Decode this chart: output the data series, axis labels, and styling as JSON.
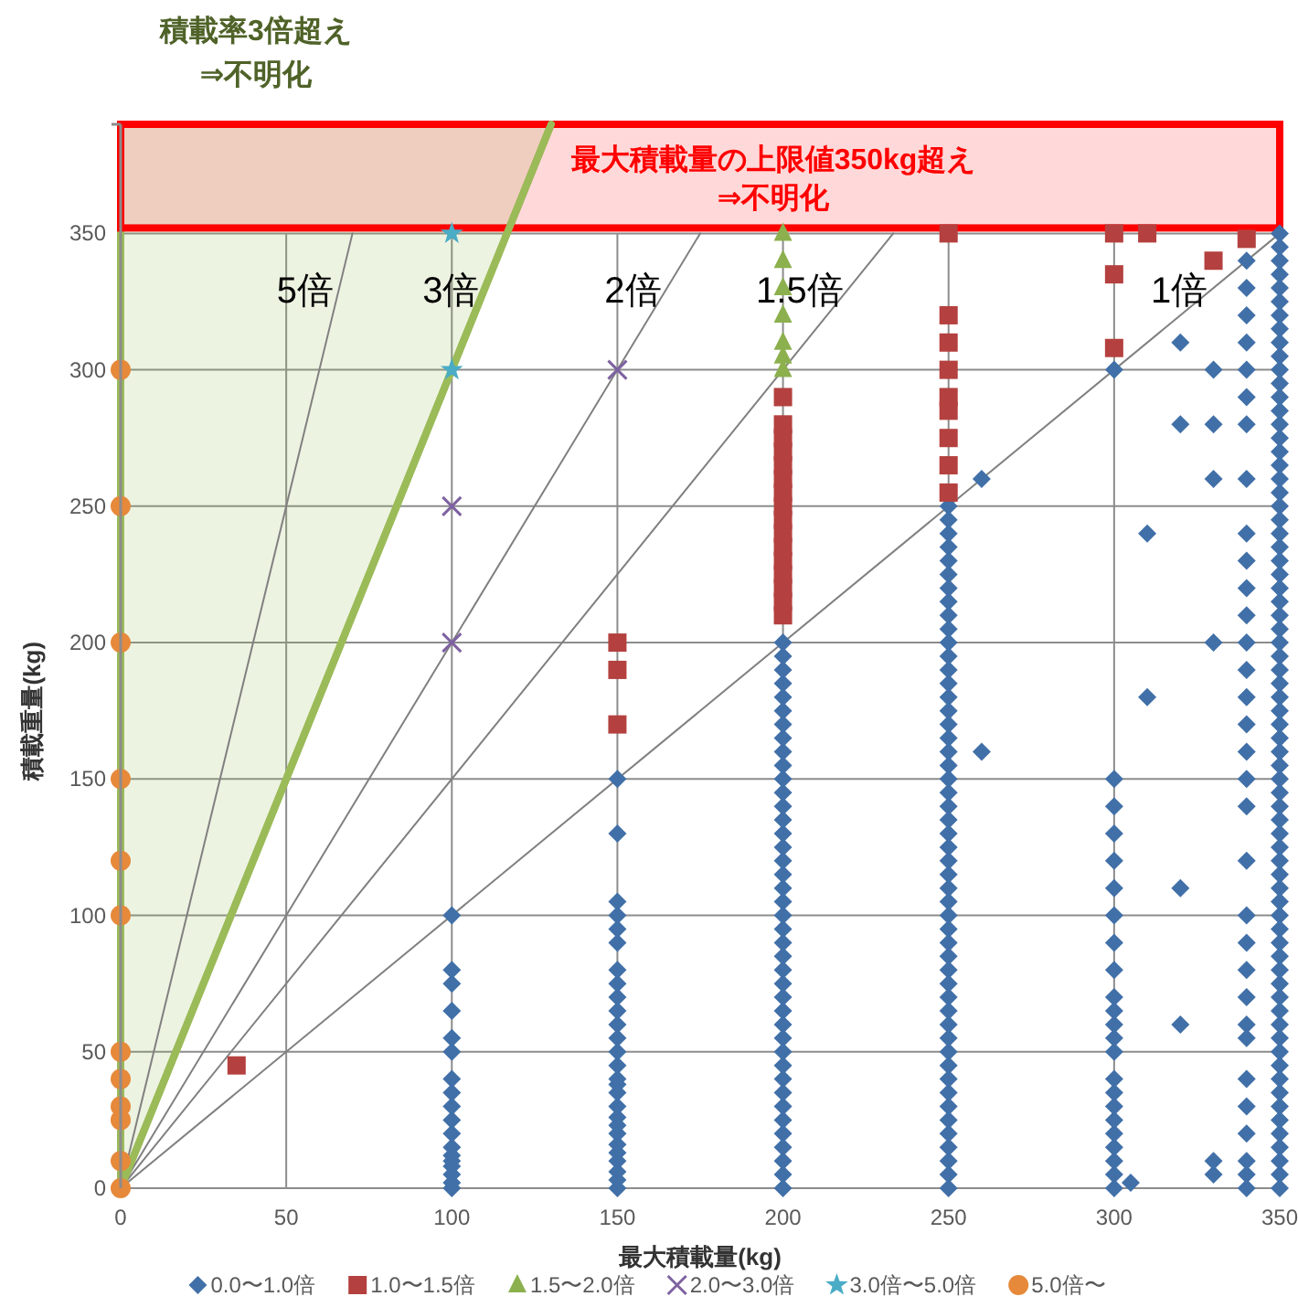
{
  "chart_data": {
    "type": "scatter",
    "xlabel": "最大積載量(kg)",
    "ylabel": "積載重量(kg)",
    "annotations": [
      "積載率3倍超え\n⇒不明化"
    ],
    "xlim": [
      0,
      350
    ],
    "ylim": [
      0,
      390
    ],
    "xticks": [
      0,
      50,
      100,
      150,
      200,
      250,
      300,
      350
    ],
    "yticks": [
      0,
      50,
      100,
      150,
      200,
      250,
      300,
      350
    ],
    "grid": true,
    "legend": "bottom",
    "bands": [
      {
        "axis": "y",
        "from": 352,
        "to": 390,
        "label": "最大積載量の上限値350kg超え\n⇒不明化",
        "color": "#ff0000"
      }
    ],
    "series": [
      {
        "type": "line",
        "name": "3倍",
        "color": "#9bbb59",
        "x": [
          0,
          130
        ],
        "values": [
          0,
          390
        ],
        "lower": [
          0,
          390
        ],
        "upper": [
          390,
          390
        ]
      },
      {
        "type": "line",
        "name": "5倍",
        "color": "#808080",
        "x": [
          0,
          70
        ],
        "values": [
          0,
          350
        ]
      },
      {
        "type": "line",
        "name": "2倍",
        "color": "#808080",
        "x": [
          0,
          175
        ],
        "values": [
          0,
          350
        ]
      },
      {
        "type": "line",
        "name": "1.5倍",
        "color": "#808080",
        "x": [
          0,
          233.3
        ],
        "values": [
          0,
          350
        ]
      },
      {
        "type": "line",
        "name": "1倍",
        "color": "#808080",
        "x": [
          0,
          350
        ],
        "values": [
          0,
          350
        ]
      },
      {
        "type": "scatter",
        "name": "0.0〜1.0倍",
        "color": "#4170a8",
        "marker": "diamond",
        "x": [
          100,
          100,
          100,
          100,
          100,
          100,
          100,
          100,
          100,
          100,
          100,
          100,
          100,
          100,
          100,
          100,
          100,
          100,
          150,
          150,
          150,
          150,
          150,
          150,
          150,
          150,
          150,
          150,
          150,
          150,
          150,
          150,
          150,
          150,
          150,
          150,
          150,
          150,
          150,
          150,
          150,
          150,
          150,
          150,
          150,
          200,
          200,
          200,
          200,
          200,
          200,
          200,
          200,
          200,
          200,
          200,
          200,
          200,
          200,
          200,
          200,
          200,
          200,
          200,
          200,
          200,
          200,
          200,
          200,
          200,
          200,
          200,
          200,
          200,
          200,
          200,
          200,
          200,
          200,
          200,
          200,
          200,
          200,
          200,
          200,
          200,
          250,
          250,
          250,
          250,
          250,
          250,
          250,
          250,
          250,
          250,
          250,
          250,
          250,
          250,
          250,
          250,
          250,
          250,
          250,
          250,
          250,
          250,
          250,
          250,
          250,
          250,
          250,
          250,
          250,
          250,
          250,
          250,
          250,
          250,
          250,
          250,
          250,
          250,
          250,
          250,
          250,
          250,
          250,
          250,
          250,
          250,
          250,
          250,
          250,
          250,
          250,
          260,
          260,
          300,
          300,
          300,
          300,
          300,
          300,
          300,
          300,
          300,
          300,
          300,
          300,
          300,
          300,
          300,
          300,
          300,
          300,
          300,
          300,
          300,
          300,
          300,
          305,
          310,
          310,
          320,
          320,
          320,
          320,
          330,
          330,
          330,
          330,
          330,
          330,
          340,
          340,
          340,
          340,
          340,
          340,
          340,
          340,
          340,
          340,
          340,
          340,
          340,
          340,
          340,
          340,
          340,
          340,
          340,
          340,
          340,
          340,
          340,
          340,
          340,
          340,
          340,
          340,
          340,
          340,
          340,
          340,
          350,
          350,
          350,
          350,
          350,
          350,
          350,
          350,
          350,
          350,
          350,
          350,
          350,
          350,
          350,
          350,
          350,
          350,
          350,
          350,
          350,
          350,
          350,
          350,
          350,
          350,
          350,
          350,
          350,
          350,
          350,
          350,
          350,
          350,
          350,
          350,
          350,
          350,
          350,
          350,
          350,
          350,
          350,
          350,
          350,
          350,
          350,
          350,
          350,
          350,
          350,
          350,
          350,
          350,
          350,
          350,
          350,
          350,
          350,
          350,
          350,
          350,
          350,
          350,
          350,
          350,
          350,
          350,
          350,
          350,
          350
        ],
        "values": [
          0,
          2,
          5,
          8,
          10,
          12,
          15,
          20,
          25,
          30,
          35,
          40,
          50,
          55,
          65,
          75,
          80,
          100,
          0,
          3,
          6,
          10,
          13,
          16,
          20,
          23,
          26,
          30,
          35,
          38,
          40,
          45,
          50,
          55,
          60,
          65,
          70,
          75,
          80,
          90,
          95,
          100,
          105,
          130,
          150,
          0,
          5,
          10,
          15,
          20,
          25,
          30,
          35,
          40,
          45,
          50,
          55,
          60,
          65,
          70,
          75,
          80,
          85,
          90,
          95,
          100,
          105,
          110,
          115,
          120,
          125,
          130,
          135,
          140,
          145,
          150,
          155,
          160,
          165,
          170,
          175,
          180,
          185,
          190,
          195,
          200,
          0,
          5,
          10,
          15,
          20,
          25,
          30,
          35,
          40,
          45,
          50,
          55,
          60,
          65,
          70,
          75,
          80,
          85,
          90,
          95,
          100,
          105,
          110,
          115,
          120,
          125,
          130,
          135,
          140,
          145,
          150,
          155,
          160,
          165,
          170,
          175,
          180,
          185,
          190,
          195,
          200,
          205,
          210,
          215,
          220,
          225,
          230,
          235,
          240,
          245,
          250,
          160,
          260,
          0,
          5,
          10,
          15,
          20,
          25,
          30,
          35,
          40,
          50,
          55,
          60,
          65,
          70,
          80,
          90,
          100,
          110,
          120,
          130,
          140,
          150,
          300,
          2,
          180,
          240,
          60,
          110,
          280,
          310,
          5,
          10,
          200,
          260,
          280,
          300,
          0,
          5,
          10,
          20,
          30,
          40,
          55,
          60,
          70,
          80,
          90,
          100,
          120,
          140,
          150,
          160,
          170,
          180,
          190,
          200,
          210,
          220,
          230,
          240,
          260,
          280,
          290,
          300,
          310,
          320,
          330,
          340,
          0,
          5,
          10,
          15,
          20,
          25,
          30,
          35,
          40,
          45,
          50,
          55,
          60,
          65,
          70,
          75,
          80,
          85,
          90,
          95,
          100,
          105,
          110,
          115,
          120,
          125,
          130,
          135,
          140,
          145,
          150,
          155,
          160,
          165,
          170,
          175,
          180,
          185,
          190,
          195,
          200,
          205,
          210,
          215,
          220,
          225,
          230,
          235,
          240,
          245,
          250,
          255,
          260,
          265,
          270,
          275,
          280,
          285,
          290,
          295,
          300,
          305,
          310,
          315,
          320,
          325,
          330,
          335,
          340,
          345,
          350
        ]
      },
      {
        "type": "scatter",
        "name": "1.0〜1.5倍",
        "color": "#b4413f",
        "marker": "square",
        "x": [
          35,
          150,
          150,
          150,
          200,
          200,
          200,
          200,
          200,
          200,
          200,
          200,
          200,
          200,
          200,
          200,
          200,
          200,
          200,
          200,
          250,
          250,
          250,
          250,
          250,
          250,
          250,
          250,
          250,
          300,
          300,
          300,
          310,
          330,
          340
        ],
        "values": [
          45,
          170,
          190,
          200,
          210,
          215,
          220,
          225,
          230,
          235,
          240,
          245,
          250,
          255,
          260,
          265,
          270,
          275,
          280,
          290,
          255,
          265,
          275,
          285,
          290,
          300,
          310,
          320,
          350,
          308,
          335,
          350,
          350,
          340,
          348
        ]
      },
      {
        "type": "scatter",
        "name": "1.5〜2.0倍",
        "color": "#8cb04e",
        "marker": "triangle",
        "x": [
          200,
          200,
          200,
          200,
          200,
          200,
          200
        ],
        "values": [
          300,
          305,
          310,
          320,
          330,
          340,
          350
        ]
      },
      {
        "type": "scatter",
        "name": "2.0〜3.0倍",
        "color": "#7e62a1",
        "marker": "cross",
        "x": [
          100,
          100,
          150
        ],
        "values": [
          200,
          250,
          300
        ]
      },
      {
        "type": "scatter",
        "name": "3.0倍〜5.0倍",
        "color": "#4bacc6",
        "marker": "star",
        "x": [
          100,
          100
        ],
        "values": [
          300,
          350
        ]
      },
      {
        "type": "scatter",
        "name": "5.0倍〜",
        "color": "#e6893a",
        "marker": "circle",
        "x": [
          0,
          0,
          0,
          0,
          0,
          0,
          0,
          0,
          0,
          0,
          0,
          0
        ],
        "values": [
          0,
          10,
          25,
          30,
          40,
          50,
          100,
          120,
          150,
          200,
          250,
          300
        ]
      }
    ]
  }
}
